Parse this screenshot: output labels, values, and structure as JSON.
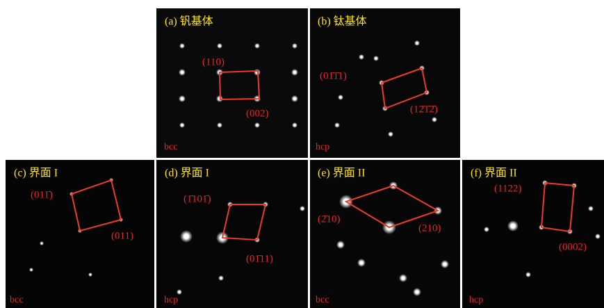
{
  "panels": [
    {
      "title": "(a) 钒基体",
      "structure": "bcc",
      "indices": [
        "(110)",
        "(002)"
      ]
    },
    {
      "title": "(b) 钛基体",
      "structure": "hcp",
      "indices": [
        "(01̄1̄1)",
        "(12̄1̄2̄)"
      ]
    },
    {
      "title": "(c) 界面 I",
      "structure": "bcc",
      "indices": [
        "(011̄)",
        "(011)"
      ]
    },
    {
      "title": "(d) 界面 I",
      "structure": "hcp",
      "indices": [
        "(1̄101̄)",
        "(01̄11)"
      ]
    },
    {
      "title": "(e) 界面 II",
      "structure": "bcc",
      "indices": [
        "(2̄10)",
        "(210)"
      ]
    },
    {
      "title": "(f) 界面 II",
      "structure": "hcp",
      "indices": [
        "(1122)",
        "(0002)"
      ]
    }
  ]
}
